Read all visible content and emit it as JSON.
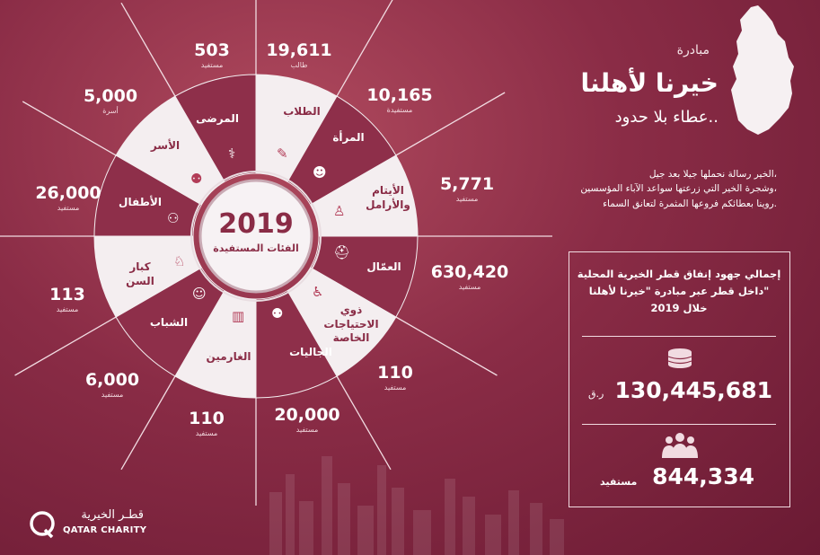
{
  "header": {
    "initiative_label": "مبادرة",
    "initiative_name": "خيرنا لأهلنا",
    "tagline": "عطاء بلا حدود.."
  },
  "intro_text": [
    "الخير رسالة نحملها جيلا بعد جيل،",
    "وشجرة الخير التي زرعتها سواعد الآباء المؤسسين،",
    "روينا بعطائكم فروعها المثمرة لتعانق السماء."
  ],
  "center": {
    "year": "2019",
    "label": "الفئات المستفيدة"
  },
  "segments": [
    {
      "name": "الطلاب",
      "value": "19,611",
      "unit": "طالب",
      "icon": "student-icon"
    },
    {
      "name": "المرأة",
      "value": "10,165",
      "unit": "مستفيدة",
      "icon": "woman-icon"
    },
    {
      "name": "الأيتام والأرامل",
      "value": "5,771",
      "unit": "مستفيد",
      "icon": "orphan-widow-icon"
    },
    {
      "name": "العمّال",
      "value": "630,420",
      "unit": "مستفيد",
      "icon": "worker-icon"
    },
    {
      "name": "ذوي الاحتياجات الخاصة",
      "value": "110",
      "unit": "مستفيد",
      "icon": "wheelchair-icon"
    },
    {
      "name": "الجاليات",
      "value": "20,000",
      "unit": "مستفيد",
      "icon": "community-icon"
    },
    {
      "name": "الغارمين",
      "value": "110",
      "unit": "مستفيد",
      "icon": "debtor-icon"
    },
    {
      "name": "الشباب",
      "value": "6,000",
      "unit": "مستفيد",
      "icon": "youth-icon"
    },
    {
      "name": "كبار السن",
      "value": "113",
      "unit": "مستفيد",
      "icon": "elderly-icon"
    },
    {
      "name": "الأطفال",
      "value": "26,000",
      "unit": "مستفيد",
      "icon": "children-icon"
    },
    {
      "name": "الأسر",
      "value": "5,000",
      "unit": "أسرة",
      "icon": "family-icon"
    },
    {
      "name": "المرضى",
      "value": "503",
      "unit": "مستفيد",
      "icon": "patient-icon"
    }
  ],
  "summary": {
    "title_lines": [
      "إجمالي جهود إنفاق قطر الخيرية المحلية",
      "داخل قطر عبر مبادرة \"خيرنا لأهلنا\"",
      "خلال 2019"
    ],
    "amount": "130,445,681",
    "currency": "ر.ق",
    "beneficiaries": "844,334",
    "beneficiaries_label": "مستفيد",
    "coins_icon": "coins-icon",
    "people_icon": "people-group-icon"
  },
  "logo": {
    "arabic": "قطـر الخيرية",
    "english": "QATAR CHARITY"
  },
  "colors": {
    "bg": "#8a2c46",
    "accent": "#b23c57",
    "light": "#f1e6ea"
  }
}
